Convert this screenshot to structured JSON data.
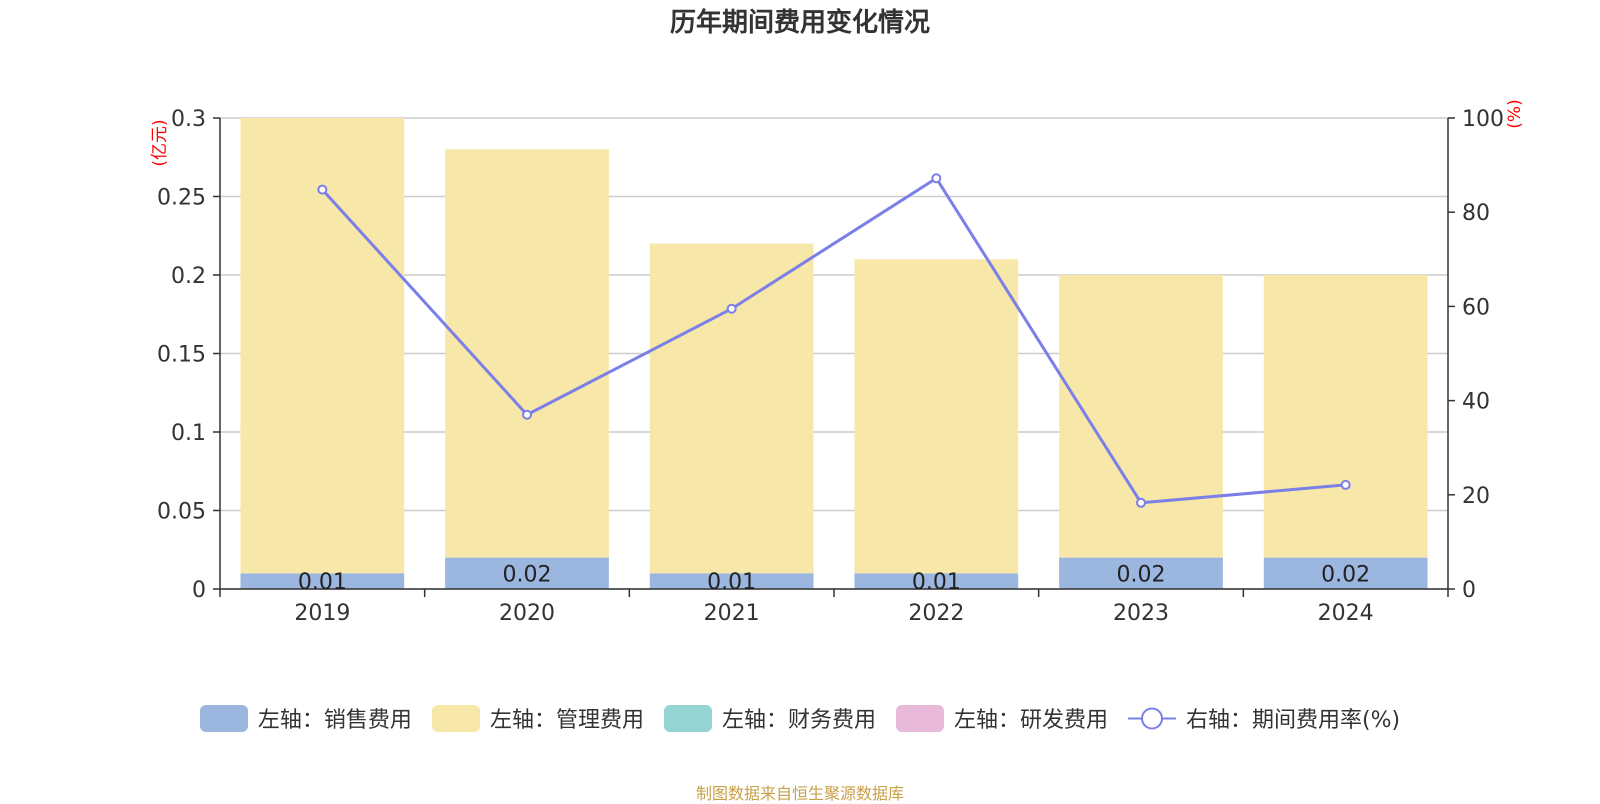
{
  "chart_data": {
    "type": "bar",
    "title": "历年期间费用变化情况",
    "categories": [
      "2019",
      "2020",
      "2021",
      "2022",
      "2023",
      "2024"
    ],
    "left_axis": {
      "unit_label": "(亿元)",
      "ylim": [
        0,
        0.3
      ],
      "ticks": [
        "0",
        "0.05",
        "0.1",
        "0.15",
        "0.2",
        "0.25",
        "0.3"
      ]
    },
    "right_axis": {
      "unit_label": "(%)",
      "ylim": [
        0,
        100
      ],
      "ticks": [
        "0",
        "20",
        "40",
        "60",
        "80",
        "100"
      ]
    },
    "series": [
      {
        "name": "左轴：销售费用",
        "kind": "bar",
        "stack": "left",
        "color": "#9bb7e0",
        "values": [
          0.01,
          0.02,
          0.01,
          0.01,
          0.02,
          0.02
        ],
        "labels": [
          "0.01",
          "0.02",
          "0.01",
          "0.01",
          "0.02",
          "0.02"
        ]
      },
      {
        "name": "左轴：管理费用",
        "kind": "bar",
        "stack": "left",
        "color": "#f7e7a8",
        "values": [
          0.29,
          0.26,
          0.21,
          0.2,
          0.18,
          0.18
        ]
      },
      {
        "name": "左轴：财务费用",
        "kind": "bar",
        "stack": "left",
        "color": "#96d4d4",
        "values": [
          0,
          0,
          0,
          0,
          0,
          0
        ]
      },
      {
        "name": "左轴：研发费用",
        "kind": "bar",
        "stack": "left",
        "color": "#e8b9d9",
        "values": [
          0,
          0,
          0,
          0,
          0,
          0
        ]
      },
      {
        "name": "右轴：期间费用率(%)",
        "kind": "line",
        "axis": "right",
        "color": "#7b7fe8",
        "values": [
          84.8,
          37.0,
          59.5,
          87.2,
          18.3,
          22.1
        ]
      }
    ],
    "grid": true,
    "legend_position": "bottom"
  },
  "source_text": "制图数据来自恒生聚源数据库"
}
